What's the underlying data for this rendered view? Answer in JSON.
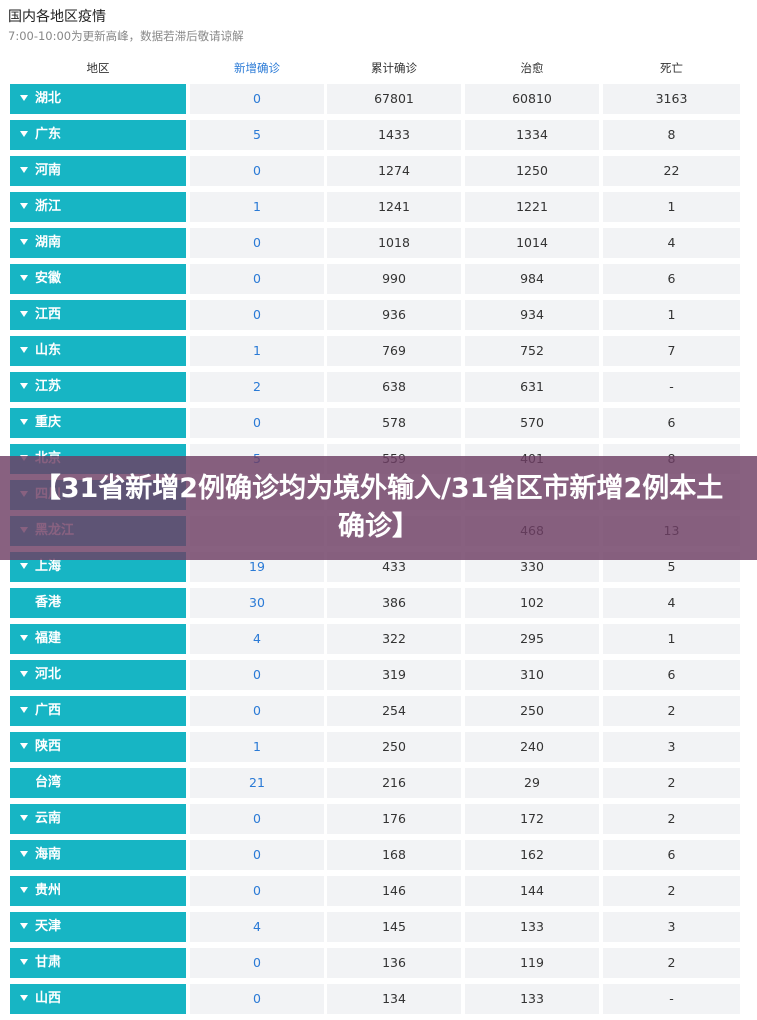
{
  "header": {
    "title": "国内各地区疫情",
    "subtitle": "7:00-10:00为更新高峰，数据若滞后敬请谅解"
  },
  "table": {
    "columns": [
      "地区",
      "新增确诊",
      "累计确诊",
      "治愈",
      "死亡"
    ],
    "rows": [
      {
        "region": "湖北",
        "new": "0",
        "total": "67801",
        "cured": "60810",
        "dead": "3163",
        "expandable": true
      },
      {
        "region": "广东",
        "new": "5",
        "total": "1433",
        "cured": "1334",
        "dead": "8",
        "expandable": true
      },
      {
        "region": "河南",
        "new": "0",
        "total": "1274",
        "cured": "1250",
        "dead": "22",
        "expandable": true
      },
      {
        "region": "浙江",
        "new": "1",
        "total": "1241",
        "cured": "1221",
        "dead": "1",
        "expandable": true
      },
      {
        "region": "湖南",
        "new": "0",
        "total": "1018",
        "cured": "1014",
        "dead": "4",
        "expandable": true
      },
      {
        "region": "安徽",
        "new": "0",
        "total": "990",
        "cured": "984",
        "dead": "6",
        "expandable": true
      },
      {
        "region": "江西",
        "new": "0",
        "total": "936",
        "cured": "934",
        "dead": "1",
        "expandable": true
      },
      {
        "region": "山东",
        "new": "1",
        "total": "769",
        "cured": "752",
        "dead": "7",
        "expandable": true
      },
      {
        "region": "江苏",
        "new": "2",
        "total": "638",
        "cured": "631",
        "dead": "-",
        "expandable": true
      },
      {
        "region": "重庆",
        "new": "0",
        "total": "578",
        "cured": "570",
        "dead": "6",
        "expandable": true
      },
      {
        "region": "北京",
        "new": "5",
        "total": "559",
        "cured": "401",
        "dead": "8",
        "expandable": true
      },
      {
        "region": "四川",
        "new": "",
        "total": "",
        "cured": "",
        "dead": "",
        "expandable": true
      },
      {
        "region": "黑龙江",
        "new": "",
        "total": "",
        "cured": "468",
        "dead": "13",
        "expandable": true
      },
      {
        "region": "上海",
        "new": "19",
        "total": "433",
        "cured": "330",
        "dead": "5",
        "expandable": true
      },
      {
        "region": "香港",
        "new": "30",
        "total": "386",
        "cured": "102",
        "dead": "4",
        "expandable": false
      },
      {
        "region": "福建",
        "new": "4",
        "total": "322",
        "cured": "295",
        "dead": "1",
        "expandable": true
      },
      {
        "region": "河北",
        "new": "0",
        "total": "319",
        "cured": "310",
        "dead": "6",
        "expandable": true
      },
      {
        "region": "广西",
        "new": "0",
        "total": "254",
        "cured": "250",
        "dead": "2",
        "expandable": true
      },
      {
        "region": "陕西",
        "new": "1",
        "total": "250",
        "cured": "240",
        "dead": "3",
        "expandable": true
      },
      {
        "region": "台湾",
        "new": "21",
        "total": "216",
        "cured": "29",
        "dead": "2",
        "expandable": false
      },
      {
        "region": "云南",
        "new": "0",
        "total": "176",
        "cured": "172",
        "dead": "2",
        "expandable": true
      },
      {
        "region": "海南",
        "new": "0",
        "total": "168",
        "cured": "162",
        "dead": "6",
        "expandable": true
      },
      {
        "region": "贵州",
        "new": "0",
        "total": "146",
        "cured": "144",
        "dead": "2",
        "expandable": true
      },
      {
        "region": "天津",
        "new": "4",
        "total": "145",
        "cured": "133",
        "dead": "3",
        "expandable": true
      },
      {
        "region": "甘肃",
        "new": "0",
        "total": "136",
        "cured": "119",
        "dead": "2",
        "expandable": true
      },
      {
        "region": "山西",
        "new": "0",
        "total": "134",
        "cured": "133",
        "dead": "-",
        "expandable": true
      }
    ]
  },
  "banner": {
    "text": "【31省新增2例确诊均为境外输入/31省区市新增2例本土确诊】"
  },
  "colors": {
    "region_bg": "#17b5c4",
    "cell_bg": "#f2f3f5",
    "new_text": "#2a7ad6",
    "banner_bg": "#6e3e64"
  }
}
